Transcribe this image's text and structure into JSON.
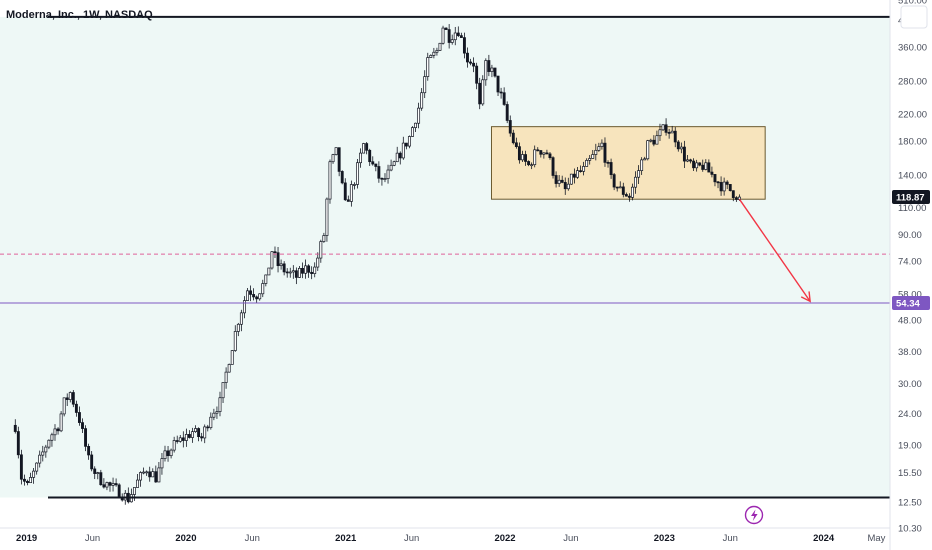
{
  "chart_data": {
    "type": "candlestick",
    "title": "Moderna, Inc., 1W, NASDAQ",
    "y_scale": "log",
    "ylim": [
      10.3,
      510
    ],
    "xlim": [
      "2018-11-01",
      "2024-06-01"
    ],
    "y_ticks": [
      "510.00",
      "440.00",
      "360.00",
      "280.00",
      "220.00",
      "180.00",
      "140.00",
      "110.00",
      "90.00",
      "74.00",
      "58.00",
      "48.00",
      "38.00",
      "30.00",
      "24.00",
      "19.00",
      "15.50",
      "12.50",
      "10.30"
    ],
    "x_ticks": [
      {
        "label": "2019",
        "date": "2019-01-01",
        "major": true
      },
      {
        "label": "Jun",
        "date": "2019-06-01",
        "major": false
      },
      {
        "label": "2020",
        "date": "2020-01-01",
        "major": true
      },
      {
        "label": "Jun",
        "date": "2020-06-01",
        "major": false
      },
      {
        "label": "2021",
        "date": "2021-01-01",
        "major": true
      },
      {
        "label": "Jun",
        "date": "2021-06-01",
        "major": false
      },
      {
        "label": "2022",
        "date": "2022-01-01",
        "major": true
      },
      {
        "label": "Jun",
        "date": "2022-06-01",
        "major": false
      },
      {
        "label": "2023",
        "date": "2023-01-01",
        "major": true
      },
      {
        "label": "Jun",
        "date": "2023-06-01",
        "major": false
      },
      {
        "label": "2024",
        "date": "2024-01-01",
        "major": true
      },
      {
        "label": "May",
        "date": "2024-05-01",
        "major": false
      }
    ],
    "price_path": [
      [
        "2018-12-06",
        22
      ],
      [
        "2018-12-20",
        15
      ],
      [
        "2019-01-03",
        14
      ],
      [
        "2019-01-31",
        17
      ],
      [
        "2019-02-21",
        20
      ],
      [
        "2019-03-14",
        22
      ],
      [
        "2019-03-28",
        26
      ],
      [
        "2019-04-11",
        28
      ],
      [
        "2019-05-02",
        23
      ],
      [
        "2019-05-23",
        17
      ],
      [
        "2019-06-13",
        15
      ],
      [
        "2019-07-11",
        14
      ],
      [
        "2019-08-01",
        13.5
      ],
      [
        "2019-08-22",
        12.8
      ],
      [
        "2019-09-12",
        14.5
      ],
      [
        "2019-10-03",
        16
      ],
      [
        "2019-10-24",
        15
      ],
      [
        "2019-11-14",
        17.5
      ],
      [
        "2019-12-05",
        19
      ],
      [
        "2019-12-26",
        20
      ],
      [
        "2020-01-16",
        21
      ],
      [
        "2020-02-06",
        20
      ],
      [
        "2020-02-27",
        24
      ],
      [
        "2020-03-19",
        26
      ],
      [
        "2020-04-09",
        36
      ],
      [
        "2020-04-30",
        48
      ],
      [
        "2020-05-21",
        60
      ],
      [
        "2020-06-11",
        58
      ],
      [
        "2020-07-02",
        64
      ],
      [
        "2020-07-16",
        80
      ],
      [
        "2020-07-30",
        72
      ],
      [
        "2020-08-20",
        68
      ],
      [
        "2020-09-10",
        66
      ],
      [
        "2020-10-01",
        70
      ],
      [
        "2020-10-22",
        70
      ],
      [
        "2020-11-12",
        90
      ],
      [
        "2020-11-26",
        150
      ],
      [
        "2020-12-10",
        165
      ],
      [
        "2020-12-31",
        112
      ],
      [
        "2021-01-21",
        135
      ],
      [
        "2021-02-11",
        175
      ],
      [
        "2021-03-04",
        150
      ],
      [
        "2021-03-25",
        132
      ],
      [
        "2021-04-15",
        145
      ],
      [
        "2021-05-06",
        165
      ],
      [
        "2021-05-27",
        185
      ],
      [
        "2021-06-17",
        230
      ],
      [
        "2021-07-08",
        320
      ],
      [
        "2021-07-29",
        350
      ],
      [
        "2021-08-12",
        420
      ],
      [
        "2021-08-26",
        390
      ],
      [
        "2021-09-16",
        410
      ],
      [
        "2021-10-07",
        330
      ],
      [
        "2021-10-21",
        320
      ],
      [
        "2021-11-04",
        230
      ],
      [
        "2021-11-18",
        320
      ],
      [
        "2021-12-02",
        300
      ],
      [
        "2021-12-23",
        250
      ],
      [
        "2022-01-13",
        190
      ],
      [
        "2022-02-03",
        160
      ],
      [
        "2022-02-24",
        150
      ],
      [
        "2022-03-17",
        170
      ],
      [
        "2022-04-07",
        165
      ],
      [
        "2022-04-28",
        135
      ],
      [
        "2022-05-19",
        125
      ],
      [
        "2022-06-09",
        140
      ],
      [
        "2022-06-30",
        145
      ],
      [
        "2022-07-21",
        160
      ],
      [
        "2022-08-11",
        175
      ],
      [
        "2022-09-01",
        135
      ],
      [
        "2022-09-22",
        125
      ],
      [
        "2022-10-13",
        120
      ],
      [
        "2022-11-03",
        145
      ],
      [
        "2022-11-24",
        175
      ],
      [
        "2022-12-15",
        185
      ],
      [
        "2023-01-05",
        200
      ],
      [
        "2023-01-26",
        185
      ],
      [
        "2023-02-16",
        160
      ],
      [
        "2023-03-09",
        145
      ],
      [
        "2023-03-30",
        150
      ],
      [
        "2023-04-20",
        140
      ],
      [
        "2023-05-11",
        130
      ],
      [
        "2023-06-01",
        125
      ],
      [
        "2023-06-22",
        118.87
      ]
    ],
    "levels": [
      {
        "name": "top-resistance",
        "price": 450,
        "style": "solid",
        "color": "#131722"
      },
      {
        "name": "bottom-support",
        "price": 12.9,
        "style": "solid",
        "color": "#131722"
      },
      {
        "name": "dashed-level",
        "price": 78,
        "style": "dashed",
        "color": "#e0619a"
      },
      {
        "name": "target-level",
        "price": 54.34,
        "style": "solid",
        "color": "#7e57c2"
      }
    ],
    "range_box": {
      "start": "2021-12-01",
      "end": "2023-08-20",
      "high": 200,
      "low": 117,
      "fill": "#f7e4bd",
      "stroke": "#6b5a2e"
    },
    "arrow": {
      "from_date": "2023-06-22",
      "from_price": 117,
      "to_date": "2023-12-01",
      "to_price": 55,
      "color": "#f23645"
    },
    "last_price": {
      "label": "118.87",
      "price": 118.87,
      "color": "#131722"
    },
    "target_price": {
      "label": "54.34",
      "price": 54.34,
      "color": "#7e57c2"
    },
    "background": "#eef8f6"
  },
  "ui": {
    "lightning_color": "#9c27b0"
  }
}
